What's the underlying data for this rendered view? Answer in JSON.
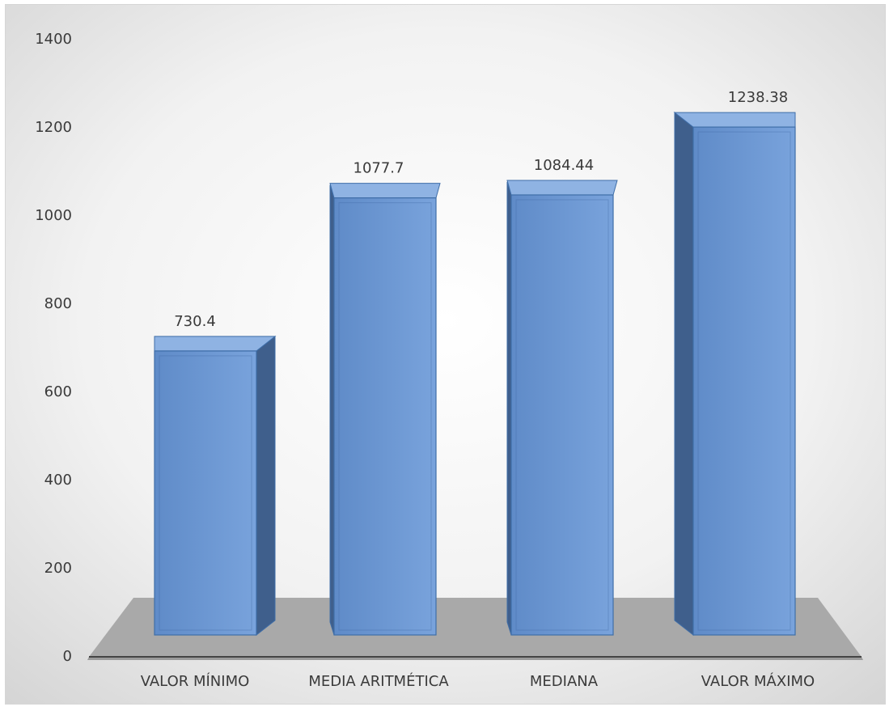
{
  "chart_data": {
    "type": "bar",
    "style": "3d-column",
    "title": "",
    "xlabel": "",
    "ylabel": "",
    "categories": [
      "VALOR MÍNIMO",
      "MEDIA ARITMÉTICA",
      "MEDIANA",
      "VALOR MÁXIMO"
    ],
    "values": [
      730.4,
      1077.7,
      1084.44,
      1238.38
    ],
    "value_labels": [
      "730.4",
      "1077.7",
      "1084.44",
      "1238.38"
    ],
    "ylim": [
      0,
      1400
    ],
    "yticks": [
      0,
      200,
      400,
      600,
      800,
      1000,
      1200,
      1400
    ],
    "ytick_labels": [
      "0",
      "200",
      "400",
      "600",
      "800",
      "1000",
      "1200",
      "1400"
    ],
    "grid": false,
    "legend": "none",
    "colors": {
      "bar_front": "#6a96d2",
      "bar_side": "#3f5f8c",
      "bar_top": "#8fb3e3",
      "bar_edge": "#3f6ea8",
      "floor": "#a9a9a9",
      "background_center": "#ffffff",
      "background_edge": "#d6d6d6"
    }
  }
}
